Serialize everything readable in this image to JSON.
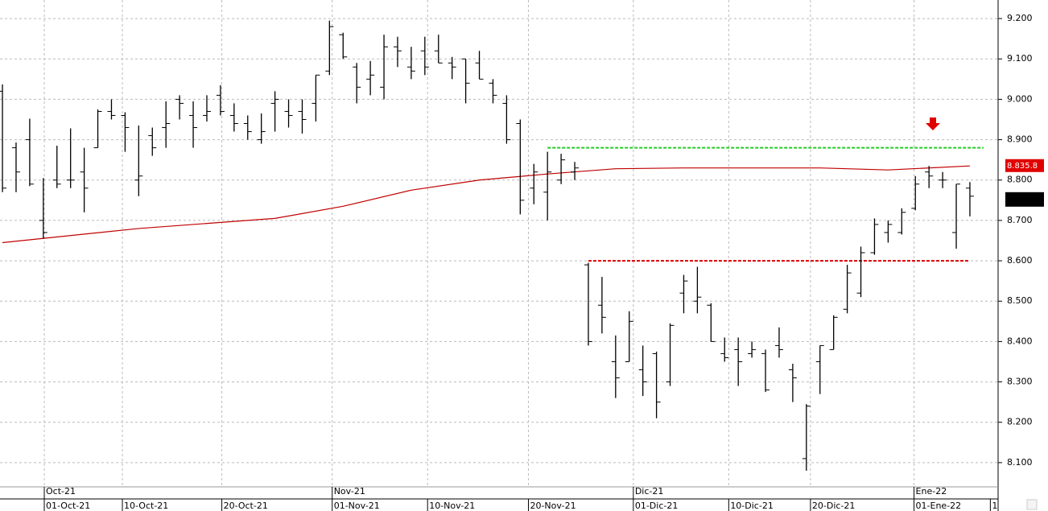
{
  "chart_data": {
    "type": "ohlc",
    "xlim": [
      -0.18,
      73.07
    ],
    "ylim": [
      8040,
      9246
    ],
    "grid": true,
    "color": "#000000",
    "yticks": [
      {
        "value": 8100,
        "label": "8.100"
      },
      {
        "value": 8200,
        "label": "8.200"
      },
      {
        "value": 8300,
        "label": "8.300"
      },
      {
        "value": 8400,
        "label": "8.400"
      },
      {
        "value": 8500,
        "label": "8.500"
      },
      {
        "value": 8600,
        "label": "8.600"
      },
      {
        "value": 8700,
        "label": "8.700"
      },
      {
        "value": 8800,
        "label": "8.800"
      },
      {
        "value": 8900,
        "label": "8.900"
      },
      {
        "value": 9000,
        "label": "9.000"
      },
      {
        "value": 9100,
        "label": "9.100"
      },
      {
        "value": 9200,
        "label": "9.200"
      }
    ],
    "xticks": [
      {
        "value": 3.07,
        "label": "01-Oct-21"
      },
      {
        "value": 8.8,
        "label": "10-Oct-21"
      },
      {
        "value": 16.1,
        "label": "20-Oct-21"
      },
      {
        "value": 24.2,
        "label": "01-Nov-21"
      },
      {
        "value": 31.2,
        "label": "10-Nov-21"
      },
      {
        "value": 38.6,
        "label": "20-Nov-21"
      },
      {
        "value": 46.3,
        "label": "01-Dic-21"
      },
      {
        "value": 53.3,
        "label": "10-Dic-21"
      },
      {
        "value": 59.3,
        "label": "20-Dic-21"
      },
      {
        "value": 66.9,
        "label": "01-Ene-22"
      },
      {
        "value": 72.5,
        "label": "1"
      }
    ],
    "month_ticks": [
      {
        "value": 3.07,
        "label": "Oct-21"
      },
      {
        "value": 24.2,
        "label": "Nov-21"
      },
      {
        "value": 46.3,
        "label": "Dic-21"
      },
      {
        "value": 66.9,
        "label": "Ene-22"
      }
    ],
    "open": [
      9020,
      8880,
      8900,
      8700,
      8800,
      8800,
      8820,
      8880,
      8970,
      8960,
      8800,
      8910,
      8930,
      9000,
      8960,
      8960,
      9010,
      8960,
      8940,
      8900,
      8990,
      8970,
      8970,
      8990,
      9070,
      9160,
      9080,
      9050,
      9030,
      9130,
      9080,
      9120,
      9120,
      9090,
      9100,
      9090,
      9040,
      8990,
      8940,
      8780,
      8770,
      8800,
      8820,
      8590,
      8490,
      8350,
      8350,
      8330,
      8370,
      8300,
      8520,
      8500,
      8490,
      8370,
      8380,
      8370,
      8370,
      8390,
      8330,
      8110,
      8350,
      8380,
      8480,
      8520,
      8620,
      8670,
      8670,
      8730,
      8820,
      8800,
      8670,
      8780
    ],
    "high": [
      9037,
      8893,
      8952,
      8805,
      8885,
      8928,
      8880,
      8975,
      9000,
      8968,
      8935,
      8930,
      8995,
      9010,
      8995,
      9010,
      9035,
      8990,
      8960,
      8965,
      9020,
      9000,
      9000,
      9060,
      9195,
      9165,
      9090,
      9095,
      9160,
      9155,
      9130,
      9155,
      9160,
      9105,
      9100,
      9120,
      9050,
      9010,
      8950,
      8840,
      8870,
      8865,
      8845,
      8595,
      8560,
      8415,
      8475,
      8390,
      8375,
      8445,
      8565,
      8585,
      8495,
      8410,
      8410,
      8400,
      8380,
      8435,
      8345,
      8245,
      8390,
      8465,
      8590,
      8635,
      8705,
      8700,
      8730,
      8810,
      8835,
      8820,
      8790,
      8795
    ],
    "low": [
      8770,
      8770,
      8785,
      8655,
      8780,
      8780,
      8720,
      8880,
      8950,
      8870,
      8760,
      8860,
      8880,
      8950,
      8880,
      8945,
      8960,
      8920,
      8900,
      8890,
      8920,
      8930,
      8915,
      8945,
      9060,
      9100,
      8990,
      9010,
      9000,
      9080,
      9050,
      9060,
      9090,
      9050,
      8990,
      9050,
      8990,
      8890,
      8715,
      8740,
      8700,
      8790,
      8800,
      8390,
      8420,
      8260,
      8350,
      8265,
      8210,
      8290,
      8470,
      8470,
      8400,
      8350,
      8290,
      8360,
      8275,
      8360,
      8250,
      8080,
      8270,
      8380,
      8470,
      8510,
      8615,
      8645,
      8665,
      8725,
      8780,
      8780,
      8630,
      8710
    ],
    "close": [
      8780,
      8820,
      8790,
      8670,
      8790,
      8800,
      8780,
      8970,
      8960,
      8930,
      8810,
      8880,
      8940,
      8990,
      8930,
      8970,
      8970,
      8940,
      8920,
      8920,
      9000,
      8960,
      8950,
      9060,
      9180,
      9105,
      9030,
      9060,
      9130,
      9120,
      9070,
      9080,
      9090,
      9080,
      9040,
      9050,
      9010,
      8900,
      8750,
      8820,
      8820,
      8850,
      8830,
      8400,
      8460,
      8310,
      8450,
      8300,
      8250,
      8440,
      8550,
      8510,
      8400,
      8360,
      8350,
      8380,
      8280,
      8380,
      8310,
      8240,
      8390,
      8460,
      8570,
      8620,
      8690,
      8690,
      8720,
      8790,
      8810,
      8800,
      8790,
      8760
    ],
    "moving_average": {
      "color": "#c00000",
      "x": [
        0,
        10,
        20,
        25,
        30,
        35,
        40,
        45,
        50,
        60,
        65,
        71
      ],
      "values": [
        8645,
        8680,
        8705,
        8735,
        8775,
        8800,
        8815,
        8828,
        8830,
        8830,
        8825,
        8835
      ]
    },
    "levels": [
      {
        "value": 8880,
        "from": 40,
        "to": 72,
        "color": "#22cc22"
      },
      {
        "value": 8600,
        "from": 43,
        "to": 71,
        "color": "#dd0000"
      }
    ],
    "price_label": {
      "value": 8835.8,
      "label": "8.835.8",
      "color": "#e00000"
    },
    "last_marker": {
      "value": 8752,
      "color": "#000000"
    }
  }
}
